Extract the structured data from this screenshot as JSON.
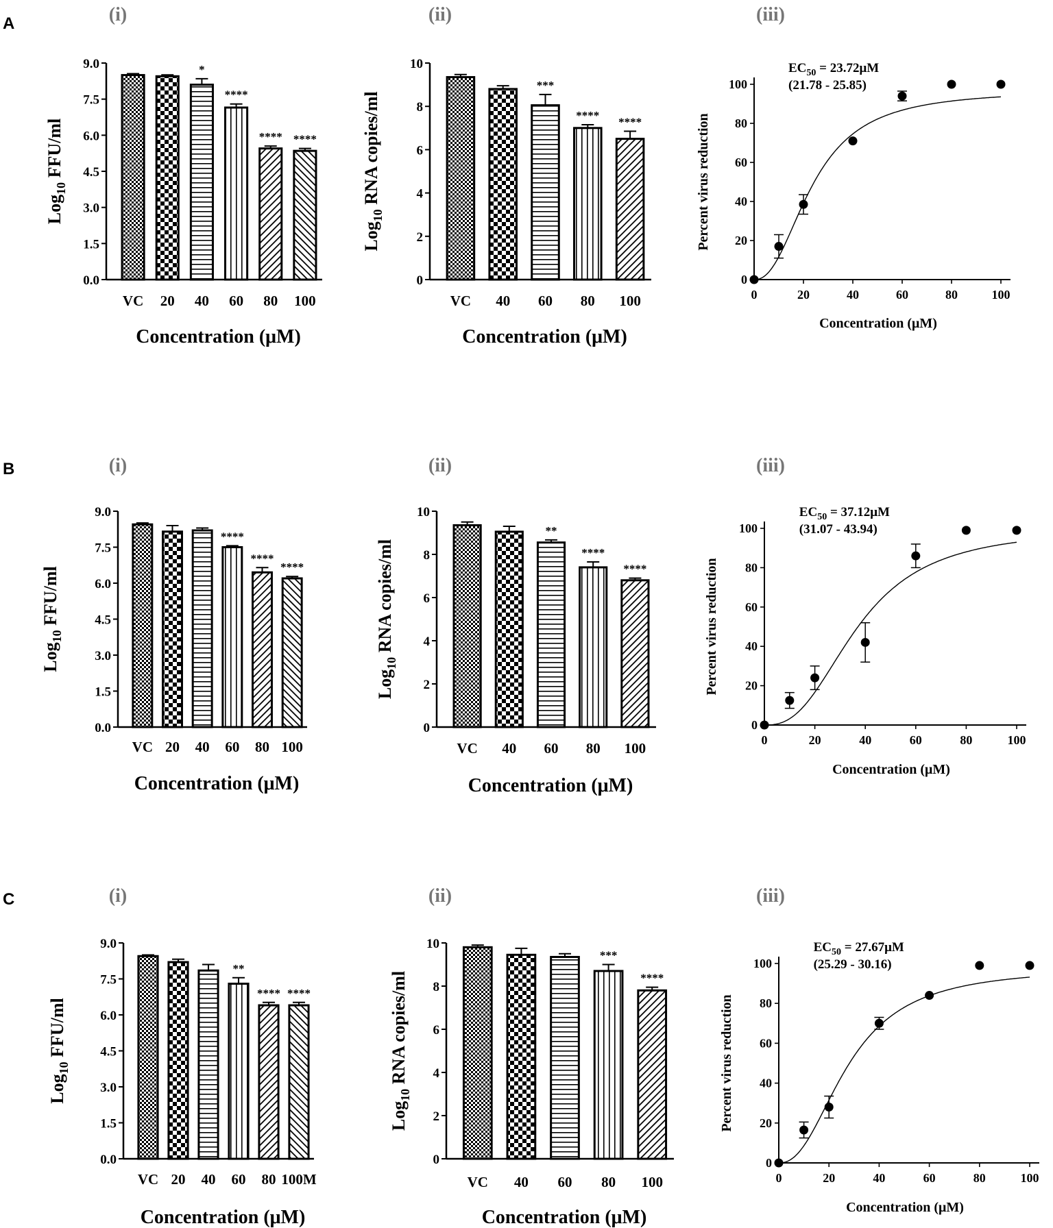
{
  "figure_title": "",
  "rows": [
    {
      "label": "A"
    },
    {
      "label": "B"
    },
    {
      "label": "C"
    }
  ],
  "panel_labels": [
    "(i)",
    "(ii)",
    "(iii)"
  ],
  "colors": {
    "ink": "#000000",
    "background": "#ffffff"
  },
  "chart_data": [
    {
      "id": "A-i",
      "type": "bar",
      "row": "A",
      "panel": "(i)",
      "title": "",
      "ylabel_main": "Log",
      "ylabel_sub": "10",
      "ylabel_rest": " FFU/ml",
      "xlabel": "Concentration (μM)",
      "categories": [
        "VC",
        "20",
        "40",
        "60",
        "80",
        "100"
      ],
      "values": [
        8.5,
        8.45,
        8.1,
        7.15,
        5.45,
        5.35
      ],
      "errors": [
        0.06,
        0.06,
        0.25,
        0.15,
        0.1,
        0.1
      ],
      "significance": [
        "",
        "",
        "*",
        "****",
        "****",
        "****"
      ],
      "patterns": [
        "check-fine",
        "check-coarse",
        "horizontal",
        "vertical",
        "diag-right",
        "diag-left"
      ],
      "ylim": [
        0,
        9
      ],
      "yticks": [
        "0.0",
        "1.5",
        "3.0",
        "4.5",
        "6.0",
        "7.5",
        "9.0"
      ]
    },
    {
      "id": "A-ii",
      "type": "bar",
      "row": "A",
      "panel": "(ii)",
      "title": "",
      "ylabel_main": "Log",
      "ylabel_sub": "10",
      "ylabel_rest": " RNA copies/ml",
      "xlabel": "Concentration (μM)",
      "categories": [
        "VC",
        "40",
        "60",
        "80",
        "100"
      ],
      "values": [
        9.35,
        8.8,
        8.05,
        7.0,
        6.5
      ],
      "errors": [
        0.12,
        0.15,
        0.5,
        0.15,
        0.35
      ],
      "significance": [
        "",
        "",
        "***",
        "****",
        "****"
      ],
      "patterns": [
        "check-fine",
        "check-coarse",
        "horizontal",
        "vertical",
        "diag-right"
      ],
      "ylim": [
        0,
        10
      ],
      "yticks": [
        "0",
        "2",
        "4",
        "6",
        "8",
        "10"
      ]
    },
    {
      "id": "A-iii",
      "type": "scatter",
      "row": "A",
      "panel": "(iii)",
      "title": "",
      "ylabel": "Percent virus reduction",
      "xlabel": "Concentration (μM)",
      "x": [
        0,
        10,
        20,
        40,
        60,
        80,
        100
      ],
      "y": [
        0,
        17,
        38.5,
        71,
        94,
        100,
        100
      ],
      "errors": [
        0,
        6,
        5,
        0,
        2.5,
        0,
        0
      ],
      "fit": {
        "ec50": 23.72,
        "hill": 2.3,
        "top": 97
      },
      "annotation_line1_main": "EC",
      "annotation_line1_sub": "50",
      "annotation_line1_rest": " = 23.72μM",
      "annotation_line2": "(21.78 - 25.85)",
      "xlim": [
        0,
        100
      ],
      "ylim": [
        0,
        100
      ],
      "xticks": [
        "0",
        "20",
        "40",
        "60",
        "80",
        "100"
      ],
      "yticks": [
        "0",
        "20",
        "40",
        "60",
        "80",
        "100"
      ]
    },
    {
      "id": "B-i",
      "type": "bar",
      "row": "B",
      "panel": "(i)",
      "title": "",
      "ylabel_main": "Log",
      "ylabel_sub": "10",
      "ylabel_rest": " FFU/ml",
      "xlabel": "Concentration (μM)",
      "categories": [
        "VC",
        "20",
        "40",
        "60",
        "80",
        "100"
      ],
      "values": [
        8.45,
        8.15,
        8.2,
        7.5,
        6.45,
        6.2
      ],
      "errors": [
        0.06,
        0.25,
        0.1,
        0.06,
        0.2,
        0.08
      ],
      "significance": [
        "",
        "",
        "",
        "****",
        "****",
        "****"
      ],
      "patterns": [
        "check-fine",
        "check-coarse",
        "horizontal",
        "vertical",
        "diag-right",
        "diag-left"
      ],
      "ylim": [
        0,
        9
      ],
      "yticks": [
        "0.0",
        "1.5",
        "3.0",
        "4.5",
        "6.0",
        "7.5",
        "9.0"
      ]
    },
    {
      "id": "B-ii",
      "type": "bar",
      "row": "B",
      "panel": "(ii)",
      "title": "",
      "ylabel_main": "Log",
      "ylabel_sub": "10",
      "ylabel_rest": " RNA copies/ml",
      "xlabel": "Concentration (μM)",
      "categories": [
        "VC",
        "40",
        "60",
        "80",
        "100"
      ],
      "values": [
        9.35,
        9.05,
        8.55,
        7.4,
        6.8
      ],
      "errors": [
        0.15,
        0.25,
        0.12,
        0.25,
        0.1
      ],
      "significance": [
        "",
        "",
        "**",
        "****",
        "****"
      ],
      "patterns": [
        "check-fine",
        "check-coarse",
        "horizontal",
        "vertical",
        "diag-right"
      ],
      "ylim": [
        0,
        10
      ],
      "yticks": [
        "0",
        "2",
        "4",
        "6",
        "8",
        "10"
      ]
    },
    {
      "id": "B-iii",
      "type": "scatter",
      "row": "B",
      "panel": "(iii)",
      "title": "",
      "ylabel": "Percent virus reduction",
      "xlabel": "Concentration (μM)",
      "x": [
        0,
        10,
        20,
        40,
        60,
        80,
        100
      ],
      "y": [
        0,
        12.5,
        24,
        42,
        86,
        99,
        99
      ],
      "errors": [
        0,
        4,
        6,
        10,
        6,
        0,
        0
      ],
      "fit": {
        "ec50": 37.12,
        "hill": 2.6,
        "top": 100
      },
      "annotation_line1_main": "EC",
      "annotation_line1_sub": "50",
      "annotation_line1_rest": " = 37.12μM",
      "annotation_line2": "(31.07 - 43.94)",
      "xlim": [
        0,
        100
      ],
      "ylim": [
        0,
        100
      ],
      "xticks": [
        "0",
        "20",
        "40",
        "60",
        "80",
        "100"
      ],
      "yticks": [
        "0",
        "20",
        "40",
        "60",
        "80",
        "100"
      ]
    },
    {
      "id": "C-i",
      "type": "bar",
      "row": "C",
      "panel": "(i)",
      "title": "",
      "ylabel_main": "Log",
      "ylabel_sub": "10",
      "ylabel_rest": " FFU/ml",
      "xlabel": "Concentration (μM)",
      "categories": [
        "VC",
        "20",
        "40",
        "60",
        "80",
        "100M"
      ],
      "values": [
        8.45,
        8.2,
        7.85,
        7.3,
        6.4,
        6.4
      ],
      "errors": [
        0.05,
        0.12,
        0.25,
        0.25,
        0.12,
        0.12
      ],
      "significance": [
        "",
        "",
        "",
        "**",
        "****",
        "****"
      ],
      "patterns": [
        "check-fine",
        "check-coarse",
        "horizontal",
        "vertical",
        "diag-right",
        "diag-left"
      ],
      "ylim": [
        0,
        9
      ],
      "yticks": [
        "0.0",
        "1.5",
        "3.0",
        "4.5",
        "6.0",
        "7.5",
        "9.0"
      ]
    },
    {
      "id": "C-ii",
      "type": "bar",
      "row": "C",
      "panel": "(ii)",
      "title": "",
      "ylabel_main": "Log",
      "ylabel_sub": "10",
      "ylabel_rest": " RNA copies/ml",
      "xlabel": "Concentration (μM)",
      "categories": [
        "VC",
        "40",
        "60",
        "80",
        "100"
      ],
      "values": [
        9.8,
        9.45,
        9.35,
        8.7,
        7.8
      ],
      "errors": [
        0.1,
        0.3,
        0.15,
        0.3,
        0.15
      ],
      "significance": [
        "",
        "",
        "",
        "***",
        "****"
      ],
      "patterns": [
        "check-fine",
        "check-coarse",
        "horizontal",
        "vertical",
        "diag-right"
      ],
      "ylim": [
        0,
        10
      ],
      "yticks": [
        "0",
        "2",
        "4",
        "6",
        "8",
        "10"
      ]
    },
    {
      "id": "C-iii",
      "type": "scatter",
      "row": "C",
      "panel": "(iii)",
      "title": "",
      "ylabel": "Percent virus reduction",
      "xlabel": "Concentration (μM)",
      "x": [
        0,
        10,
        20,
        40,
        60,
        80,
        100
      ],
      "y": [
        0,
        16.5,
        28,
        70,
        84,
        99,
        99
      ],
      "errors": [
        0,
        4,
        5.5,
        3,
        0,
        0,
        0
      ],
      "fit": {
        "ec50": 27.67,
        "hill": 2.3,
        "top": 98
      },
      "annotation_line1_main": "EC",
      "annotation_line1_sub": "50",
      "annotation_line1_rest": " = 27.67μM",
      "annotation_line2": "(25.29 - 30.16)",
      "xlim": [
        0,
        100
      ],
      "ylim": [
        0,
        100
      ],
      "xticks": [
        "0",
        "20",
        "40",
        "60",
        "80",
        "100"
      ],
      "yticks": [
        "0",
        "20",
        "40",
        "60",
        "80",
        "100"
      ]
    }
  ]
}
